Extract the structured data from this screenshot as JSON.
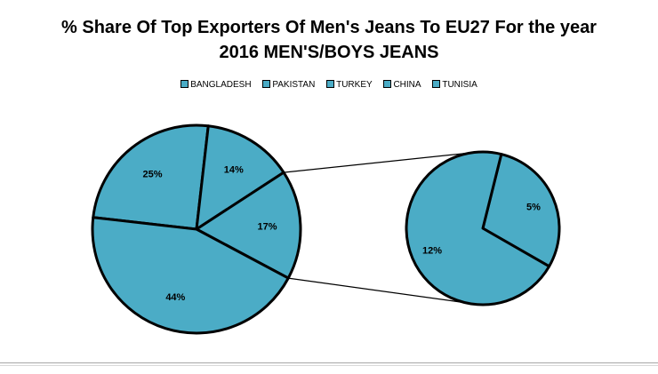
{
  "chart_data": {
    "type": "pie",
    "subtype": "pie-of-pie",
    "title_lines": [
      "% Share Of Top Exporters Of Men's Jeans To EU27 For the year",
      "2016 MEN'S/BOYS JEANS"
    ],
    "legend_entries": [
      "BANGLADESH",
      "PAKISTAN",
      "TURKEY",
      "CHINA",
      "TUNISIA"
    ],
    "legend_position": "top",
    "color": "#4bacc6",
    "outline_color": "#000000",
    "main_pie": {
      "slices": [
        {
          "label": "25%",
          "value": 25
        },
        {
          "label": "14%",
          "value": 14
        },
        {
          "label": "17%",
          "value": 17
        },
        {
          "label": "44%",
          "value": 44
        }
      ]
    },
    "secondary_pie": {
      "slices": [
        {
          "label": "5%",
          "value": 5
        },
        {
          "label": "12%",
          "value": 12
        }
      ]
    }
  }
}
